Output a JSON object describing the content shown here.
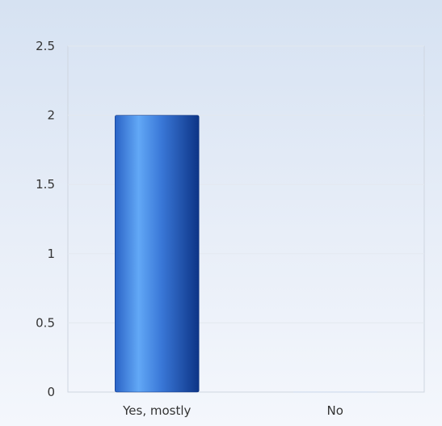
{
  "chart_data": {
    "type": "bar",
    "categories": [
      "Yes, mostly",
      "No"
    ],
    "values": [
      2,
      0
    ],
    "title": "",
    "xlabel": "",
    "ylabel": "",
    "ylim": [
      0,
      2.5
    ],
    "yticks": [
      "0",
      "0.5",
      "1",
      "1.5",
      "2",
      "2.5"
    ],
    "grid": true,
    "legend": "none",
    "colors": {
      "bar_dark": "#1a4fb0",
      "bar_light": "#5aa0f0",
      "bar_edge": "#0b2f7a",
      "grid": "#e3e8ef",
      "axis": "#cfd6e0"
    }
  }
}
